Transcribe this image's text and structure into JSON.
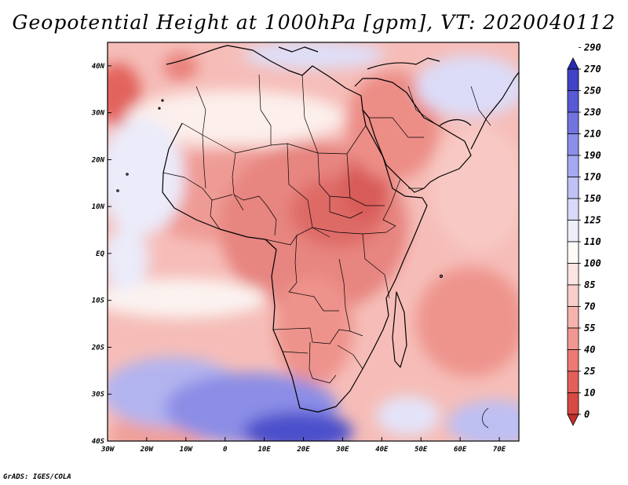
{
  "title": "Geopotential Height at 1000hPa [gpm], VT: 2020040112",
  "credit": "GrADS: IGES/COLA",
  "map": {
    "variable": "Geopotential Height at 1000hPa",
    "units": "gpm",
    "valid_time": "2020040112",
    "lon_range": [
      -30,
      75
    ],
    "lat_range": [
      -40,
      45
    ],
    "lon_ticks": [
      {
        "value": -30,
        "label": "30W"
      },
      {
        "value": -20,
        "label": "20W"
      },
      {
        "value": -10,
        "label": "10W"
      },
      {
        "value": 0,
        "label": "0"
      },
      {
        "value": 10,
        "label": "10E"
      },
      {
        "value": 20,
        "label": "20E"
      },
      {
        "value": 30,
        "label": "30E"
      },
      {
        "value": 40,
        "label": "40E"
      },
      {
        "value": 50,
        "label": "50E"
      },
      {
        "value": 60,
        "label": "60E"
      },
      {
        "value": 70,
        "label": "70E"
      }
    ],
    "lat_ticks": [
      {
        "value": 40,
        "label": "40N"
      },
      {
        "value": 30,
        "label": "30N"
      },
      {
        "value": 20,
        "label": "20N"
      },
      {
        "value": 10,
        "label": "10N"
      },
      {
        "value": 0,
        "label": "EQ"
      },
      {
        "value": -10,
        "label": "10S"
      },
      {
        "value": -20,
        "label": "20S"
      },
      {
        "value": -30,
        "label": "30S"
      },
      {
        "value": -40,
        "label": "40S"
      }
    ]
  },
  "colorbar": {
    "labels": [
      "0",
      "10",
      "25",
      "40",
      "55",
      "70",
      "85",
      "100",
      "110",
      "125",
      "150",
      "170",
      "190",
      "210",
      "230",
      "250",
      "270",
      "290"
    ],
    "colors": [
      "#c4302b",
      "#d74a43",
      "#e3605a",
      "#ec7a73",
      "#f29892",
      "#f6b3ae",
      "#f9cdca",
      "#fbe4e2",
      "#fefbf6",
      "#eeeefb",
      "#d9dafa",
      "#c0c2f6",
      "#a6a9f1",
      "#8c8fe9",
      "#7174df",
      "#575ad4",
      "#4043c6",
      "#2a2cb3"
    ]
  }
}
